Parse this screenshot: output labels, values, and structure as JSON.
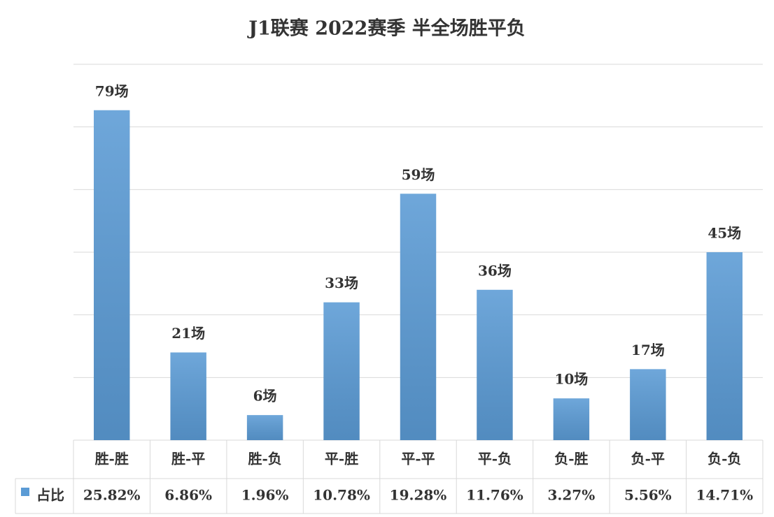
{
  "chart_data": {
    "type": "bar",
    "title": "J1联赛 2022赛季 半全场胜平负",
    "categories": [
      "胜-胜",
      "胜-平",
      "胜-负",
      "平-胜",
      "平-平",
      "平-负",
      "负-胜",
      "负-平",
      "负-负"
    ],
    "values": [
      79,
      21,
      6,
      33,
      59,
      36,
      10,
      17,
      45
    ],
    "value_labels": [
      "79场",
      "21场",
      "6场",
      "33场",
      "59场",
      "36场",
      "10场",
      "17场",
      "45场"
    ],
    "color": "#5b9bd5",
    "ylim": [
      0,
      90
    ],
    "yticks": [
      0,
      15,
      30,
      45,
      60,
      75,
      90
    ],
    "grid": true,
    "data_table": {
      "row_label": "占比",
      "values": [
        25.82,
        6.86,
        1.96,
        10.78,
        19.28,
        11.76,
        3.27,
        5.56,
        14.71
      ],
      "value_labels": [
        "25.82%",
        "6.86%",
        "1.96%",
        "10.78%",
        "19.28%",
        "11.76%",
        "3.27%",
        "5.56%",
        "14.71%"
      ]
    }
  }
}
